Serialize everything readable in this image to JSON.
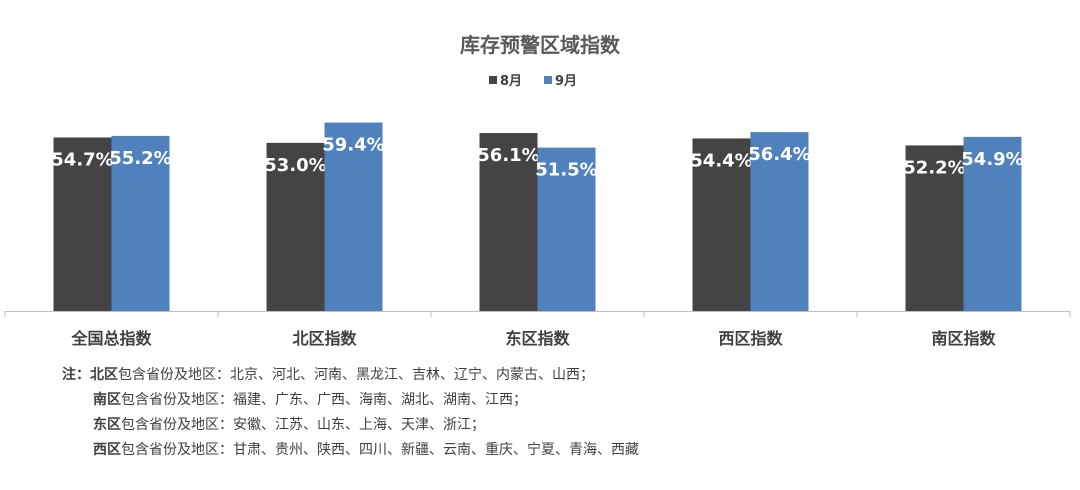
{
  "chart_data": {
    "type": "bar",
    "title": "库存预警区域指数",
    "categories": [
      "全国总指数",
      "北区指数",
      "东区指数",
      "西区指数",
      "南区指数"
    ],
    "series": [
      {
        "name": "8月",
        "values": [
          54.7,
          53.0,
          56.1,
          54.4,
          52.2
        ],
        "labels": [
          "54.7%",
          "53.0%",
          "56.1%",
          "54.4%",
          "52.2%"
        ]
      },
      {
        "name": "9月",
        "values": [
          55.2,
          59.4,
          51.5,
          56.4,
          54.9
        ],
        "labels": [
          "55.2%",
          "59.4%",
          "51.5%",
          "56.4%",
          "54.9%"
        ]
      }
    ],
    "ylim": [
      0,
      75
    ],
    "legend_position": "top-center",
    "colors": {
      "8月": "#444444",
      "9月": "#4f81bd"
    },
    "grid": false
  },
  "notes": {
    "prefix": "注：",
    "suffix_label": "包含省份及地区：",
    "lines": [
      {
        "region": "北区",
        "provinces": "北京、河北、河南、黑龙江、吉林、辽宁、内蒙古、山西；"
      },
      {
        "region": "南区",
        "provinces": "福建、广东、广西、海南、湖北、湖南、江西；"
      },
      {
        "region": "东区",
        "provinces": "安徽、江苏、山东、上海、天津、浙江；"
      },
      {
        "region": "西区",
        "provinces": "甘肃、贵州、陕西、四川、新疆、云南、重庆、宁夏、青海、西藏"
      }
    ]
  }
}
